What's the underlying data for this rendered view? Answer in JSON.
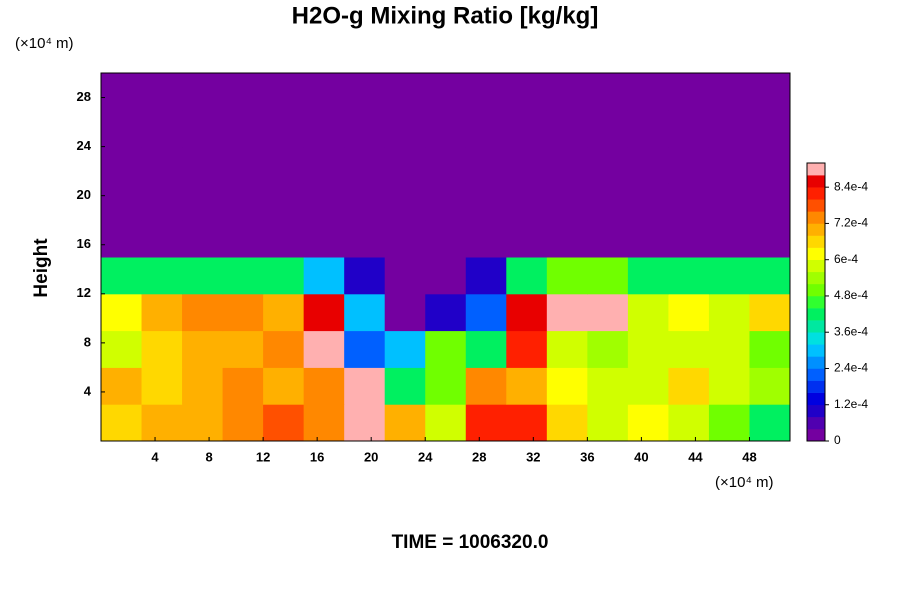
{
  "chart_data": {
    "type": "heatmap",
    "title": "H2O-g Mixing Ratio [kg/kg]",
    "y_unit_label": "(×10⁴ m)",
    "x_unit_label": "(×10⁴ m)",
    "ylabel": "Height",
    "footer": "TIME = 1006320.0",
    "xlim": [
      0,
      51
    ],
    "ylim": [
      0,
      30
    ],
    "xticks": [
      4,
      8,
      12,
      16,
      20,
      24,
      28,
      32,
      36,
      40,
      44,
      48
    ],
    "yticks": [
      4,
      8,
      12,
      16,
      20,
      24,
      28
    ],
    "x": [
      1.5,
      4.5,
      7.5,
      10.5,
      13.5,
      16.5,
      19.5,
      22.5,
      25.5,
      28.5,
      31.5,
      34.5,
      37.5,
      40.5,
      43.5,
      46.5,
      49.5
    ],
    "y": [
      1.5,
      4.5,
      7.5,
      10.5,
      13.5,
      16.5,
      19.5,
      22.5,
      25.5,
      28.5
    ],
    "z": [
      [
        0.00066,
        0.00068,
        0.0007,
        0.00075,
        0.00078,
        0.00072,
        0.0009,
        0.0007,
        0.0006,
        0.0008,
        0.0008,
        0.00065,
        0.0006,
        0.00062,
        0.0006,
        0.0005,
        0.0004
      ],
      [
        0.00068,
        0.00065,
        0.0007,
        0.00072,
        0.0007,
        0.00075,
        0.0009,
        0.0004,
        0.0005,
        0.00075,
        0.0007,
        0.00062,
        0.0006,
        0.0006,
        0.00065,
        0.0006,
        0.00055
      ],
      [
        0.0006,
        0.00065,
        0.0007,
        0.0007,
        0.00072,
        0.0009,
        0.0002,
        0.0003,
        0.0005,
        0.0004,
        0.0008,
        0.0006,
        0.00055,
        0.00058,
        0.0006,
        0.0006,
        0.0005
      ],
      [
        0.00062,
        0.0007,
        0.00072,
        0.00072,
        0.0007,
        0.00085,
        0.0003,
        0,
        0.0001,
        0.0002,
        0.00085,
        0.0009,
        0.0009,
        0.0006,
        0.00062,
        0.0006,
        0.00065
      ],
      [
        0.0004,
        0.0004,
        0.0004,
        0.0004,
        0.0004,
        0.0003,
        0.0001,
        0,
        0,
        0.0001,
        0.0004,
        0.0005,
        0.0005,
        0.0004,
        0.0004,
        0.0004,
        0.0004
      ],
      [
        0,
        0,
        0,
        0,
        0,
        0,
        0,
        0,
        0,
        0,
        0,
        0,
        0,
        0,
        0,
        0,
        0
      ],
      [
        0,
        0,
        0,
        0,
        0,
        0,
        0,
        0,
        0,
        0,
        0,
        0,
        0,
        0,
        0,
        0,
        0
      ],
      [
        0,
        0,
        0,
        0,
        0,
        0,
        0,
        0,
        0,
        0,
        0,
        0,
        0,
        0,
        0,
        0,
        0
      ],
      [
        0,
        0,
        0,
        0,
        0,
        0,
        0,
        0,
        0,
        0,
        0,
        0,
        0,
        0,
        0,
        0,
        0
      ],
      [
        0,
        0,
        0,
        0,
        0,
        0,
        0,
        0,
        0,
        0,
        0,
        0,
        0,
        0,
        0,
        0,
        0
      ]
    ],
    "clim": [
      0,
      0.00092
    ],
    "colors": [
      "#7400a0",
      "#5000b0",
      "#2000c8",
      "#0000e0",
      "#0030f0",
      "#0060ff",
      "#0090ff",
      "#00c0ff",
      "#00e0e0",
      "#00e8a0",
      "#00f060",
      "#30ff30",
      "#70ff00",
      "#a0ff00",
      "#d0ff00",
      "#ffff00",
      "#ffd800",
      "#ffb000",
      "#ff8800",
      "#ff5000",
      "#ff2000",
      "#e80000",
      "#ffb0b0"
    ],
    "colorbar_ticks": [
      0,
      {
        "value": 0.00012,
        "label": "1.2e-4"
      },
      {
        "value": 0.00024,
        "label": "2.4e-4"
      },
      {
        "value": 0.00036,
        "label": "3.6e-4"
      },
      {
        "value": 0.00048,
        "label": "4.8e-4"
      },
      {
        "value": 0.0006,
        "label": "6e-4"
      },
      {
        "value": 0.00072,
        "label": "7.2e-4"
      },
      {
        "value": 0.00084,
        "label": "8.4e-4"
      }
    ]
  }
}
